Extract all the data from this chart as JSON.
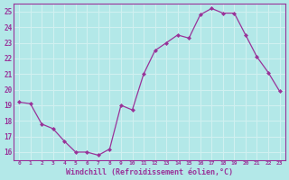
{
  "x": [
    0,
    1,
    2,
    3,
    4,
    5,
    6,
    7,
    8,
    9,
    10,
    11,
    12,
    13,
    14,
    15,
    16,
    17,
    18,
    19,
    20,
    21,
    22,
    23
  ],
  "y": [
    19.2,
    19.1,
    17.8,
    17.5,
    16.7,
    16.0,
    16.0,
    15.8,
    16.2,
    19.0,
    18.7,
    21.0,
    22.5,
    23.0,
    23.5,
    23.3,
    24.8,
    25.2,
    24.9,
    24.9,
    23.5,
    22.1,
    21.1,
    19.9
  ],
  "xlabel": "Windchill (Refroidissement éolien,°C)",
  "ylim": [
    15.5,
    25.5
  ],
  "yticks": [
    16,
    17,
    18,
    19,
    20,
    21,
    22,
    23,
    24,
    25
  ],
  "xticks": [
    0,
    1,
    2,
    3,
    4,
    5,
    6,
    7,
    8,
    9,
    10,
    11,
    12,
    13,
    14,
    15,
    16,
    17,
    18,
    19,
    20,
    21,
    22,
    23
  ],
  "line_color": "#993399",
  "marker_color": "#993399",
  "bg_color": "#b3e8e8",
  "grid_color": "#d0f0f0",
  "border_color": "#993399"
}
